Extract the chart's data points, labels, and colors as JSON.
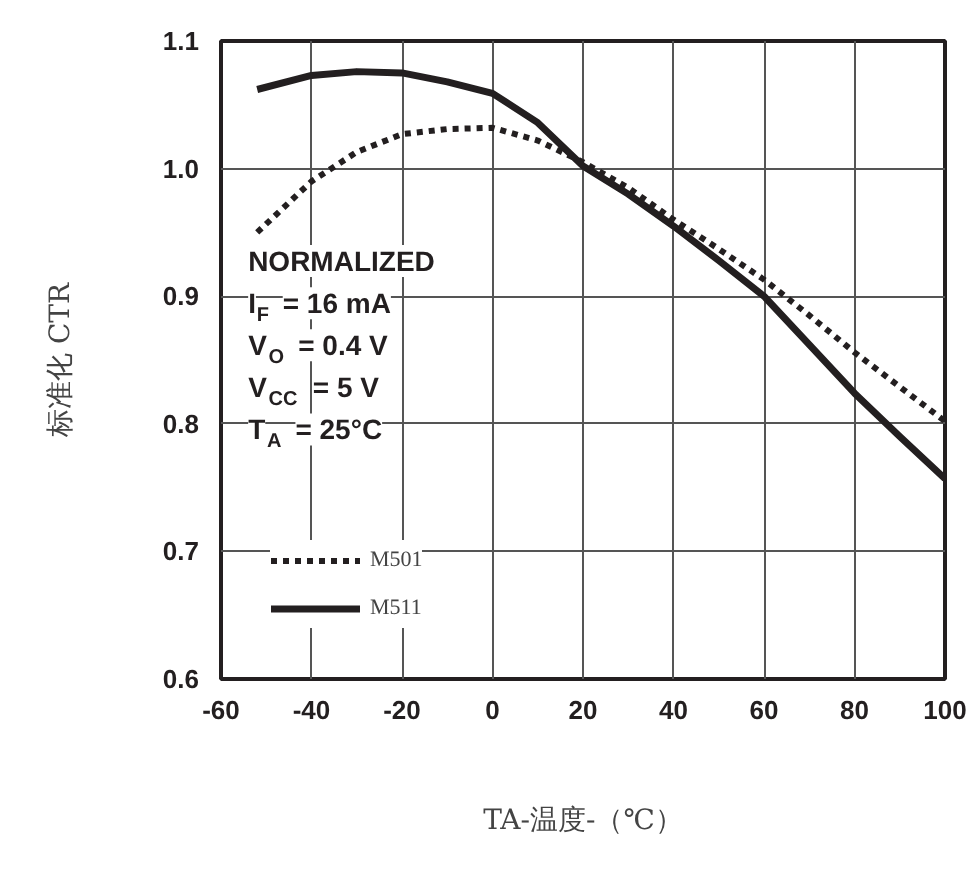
{
  "chart_data": {
    "type": "line",
    "xlabel": "TA-温度-（℃）",
    "ylabel": "标准化 CTR",
    "xlim": [
      -60,
      100
    ],
    "xticks": [
      -60,
      -40,
      -20,
      0,
      20,
      40,
      60,
      80,
      100
    ],
    "ylim": [
      0.6,
      1.1
    ],
    "yticks": [
      0.6,
      0.7,
      0.8,
      0.9,
      {
        "value": 1,
        "label": "1.0"
      },
      1.1
    ],
    "grid": true,
    "legend": "bottom left",
    "marker": "none",
    "annotations": [
      "NORMALIZED",
      "I$_{F}$ = 16 mA",
      "V$_{O}$ = 0.4 V",
      "V$_{CC}$ = 5 V",
      "T$_{A}$ = 25°C"
    ],
    "x": [
      -52,
      -40,
      -30,
      -20,
      -10,
      0,
      10,
      20,
      30,
      40,
      50,
      60,
      70,
      80,
      90,
      100
    ],
    "series": [
      {
        "name": "M501",
        "color": "#231f20",
        "line_style": "dashed",
        "values": [
          0.95,
          0.99,
          1.013,
          1.027,
          1.031,
          1.032,
          1.022,
          1.005,
          0.985,
          0.96,
          0.937,
          0.913,
          0.885,
          0.856,
          0.829,
          0.802
        ]
      },
      {
        "name": "M511",
        "color": "#231f20",
        "line_style": "solid",
        "values": [
          1.062,
          1.073,
          1.076,
          1.075,
          1.068,
          1.059,
          1.036,
          1.002,
          0.98,
          0.955,
          0.928,
          0.9,
          0.862,
          0.824,
          0.79,
          0.757
        ]
      }
    ]
  }
}
